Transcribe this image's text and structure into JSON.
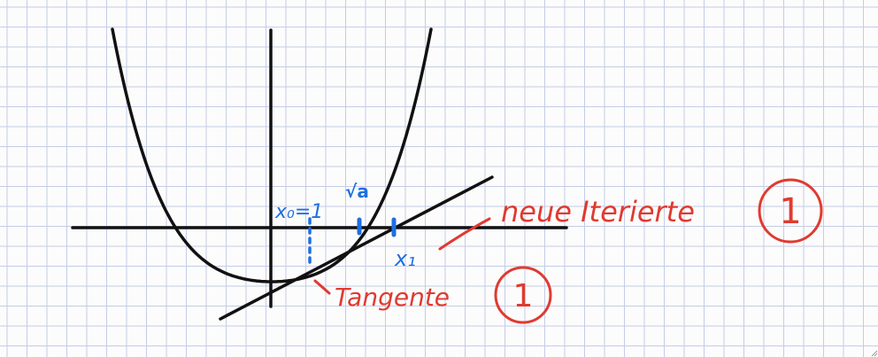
{
  "labels": {
    "x0": "x₀=1",
    "sqrt_a": "√a",
    "x1": "x₁",
    "new_iterate": "neue Iterierte",
    "tangent": "Tangente",
    "marker_new_iterate": "1",
    "marker_tangent": "1"
  },
  "colors": {
    "ink": "#111111",
    "blue": "#1e6fe0",
    "red": "#e03a30",
    "grid": "#c5cce6",
    "paper": "#fcfcfc"
  },
  "icons": {
    "corner": "resize-grip-icon"
  }
}
